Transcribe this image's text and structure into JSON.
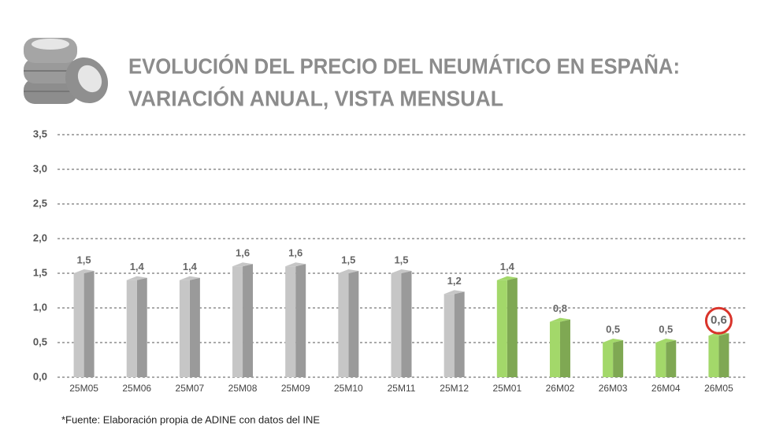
{
  "chart_data": {
    "type": "bar",
    "title": [
      "EVOLUCIÓN DEL PRECIO DEL NEUMÁTICO EN ESPAÑA:",
      "VARIACIÓN ANUAL, VISTA MENSUAL"
    ],
    "categories": [
      "25M05",
      "25M06",
      "25M07",
      "25M08",
      "25M09",
      "25M10",
      "25M11",
      "25M12",
      "25M01",
      "26M02",
      "26M03",
      "26M04",
      "26M05"
    ],
    "values": [
      1.5,
      1.4,
      1.4,
      1.6,
      1.6,
      1.5,
      1.5,
      1.2,
      1.4,
      0.8,
      0.5,
      0.5,
      0.6
    ],
    "value_labels": [
      "1,5",
      "1,4",
      "1,4",
      "1,6",
      "1,6",
      "1,5",
      "1,5",
      "1,2",
      "1,4",
      "0,8",
      "0,5",
      "0,5",
      "0,6"
    ],
    "colors": [
      "#c6c6c6",
      "#c6c6c6",
      "#c6c6c6",
      "#c6c6c6",
      "#c6c6c6",
      "#c6c6c6",
      "#c6c6c6",
      "#c6c6c6",
      "#a3d86a",
      "#a3d86a",
      "#a3d86a",
      "#a3d86a",
      "#a3d86a"
    ],
    "highlight": "26M05",
    "highlight_color": "#d9342b",
    "ylim": [
      0,
      3.5
    ],
    "yticks": [
      {
        "value": 0,
        "label": "0,0"
      },
      {
        "value": 0.5,
        "label": "0,5"
      },
      {
        "value": 1,
        "label": "1,0"
      },
      {
        "value": 1.5,
        "label": "1,5"
      },
      {
        "value": 2,
        "label": "2,0"
      },
      {
        "value": 2.5,
        "label": "2,5"
      },
      {
        "value": 3,
        "label": "3,0"
      },
      {
        "value": 3.5,
        "label": "3,5"
      }
    ],
    "grid": true,
    "source": "*Fuente: Elaboración propia de ADINE con datos del INE"
  }
}
